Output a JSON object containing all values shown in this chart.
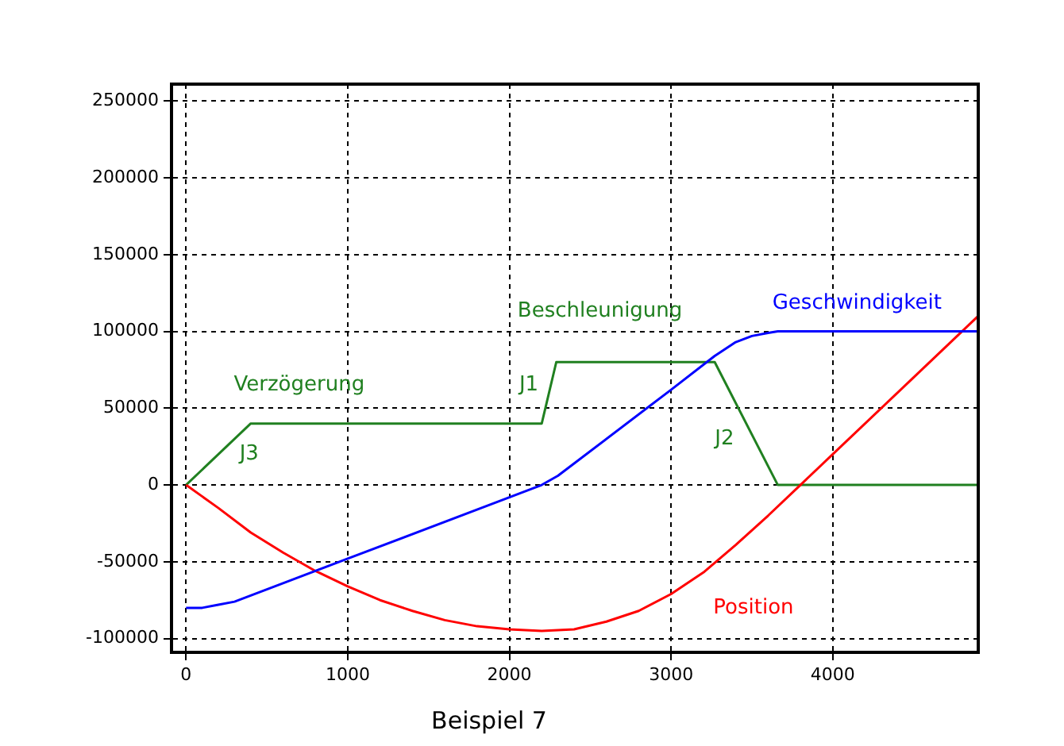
{
  "chart_data": {
    "type": "line",
    "title": "Beispiel 7",
    "xlim": [
      -90,
      4900
    ],
    "xticks": [
      0,
      1000,
      2000,
      3000,
      4000
    ],
    "ylim": [
      -109000,
      261000
    ],
    "yticks": [
      -100000,
      -50000,
      0,
      50000,
      100000,
      150000,
      200000,
      250000
    ],
    "grid": true,
    "legend": false,
    "marker": "none",
    "line_style": "solid",
    "series": [
      {
        "name": "Geschwindigkeit",
        "color": "#0000ff",
        "x": [
          0,
          100,
          200,
          300,
          400,
          1000,
          2000,
          2200,
          2250,
          2300,
          3000,
          3270,
          3400,
          3500,
          3600,
          3660,
          4900
        ],
        "values": [
          -80000,
          -80000,
          -78000,
          -76000,
          -72000,
          -48000,
          -8000,
          0,
          3000,
          6000,
          62000,
          84000,
          93000,
          97000,
          99000,
          100000,
          100000
        ]
      },
      {
        "name": "Position",
        "color": "#ff0000",
        "x": [
          0,
          200,
          400,
          600,
          800,
          1000,
          1200,
          1400,
          1600,
          1800,
          2000,
          2200,
          2400,
          2600,
          2800,
          3000,
          3200,
          3400,
          3600,
          3800,
          4000,
          4500,
          4900
        ],
        "values": [
          0,
          -15000,
          -31000,
          -44000,
          -56000,
          -66000,
          -75000,
          -82000,
          -88000,
          -92000,
          -94000,
          -95000,
          -94000,
          -89000,
          -82000,
          -71000,
          -57000,
          -39000,
          -20000,
          0,
          20000,
          70000,
          110000
        ]
      },
      {
        "name": "Beschleunigung",
        "color": "#208020",
        "x": [
          0,
          400,
          2200,
          2290,
          3270,
          3660,
          4900
        ],
        "values": [
          0,
          40000,
          40000,
          80000,
          80000,
          0,
          0
        ]
      }
    ],
    "annotations": [
      "Verzögerung",
      "J3",
      "J1",
      "J2"
    ]
  }
}
